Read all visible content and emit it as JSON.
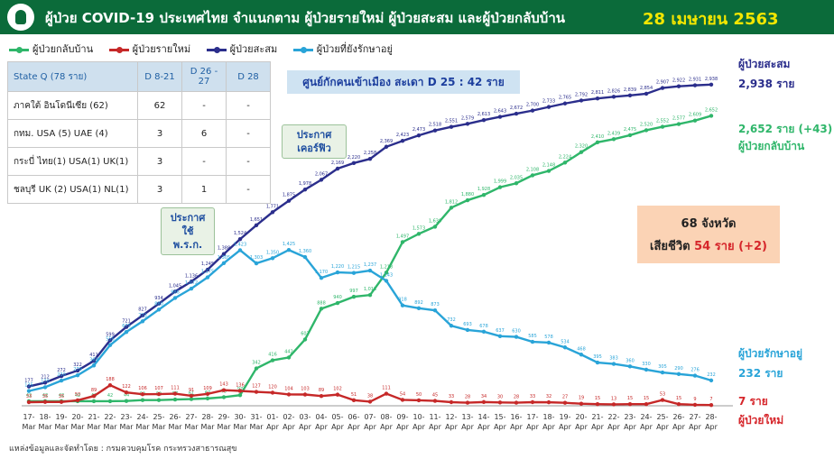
{
  "header": {
    "title": "ผู้ป่วย COVID-19 ประเทศไทย จำแนกตาม ผู้ป่วยรายใหม่ ผู้ป่วยสะสม และผู้ป่วยกลับบ้าน",
    "date": "28 เมษายน 2563"
  },
  "colors": {
    "cumulative": "#2b2e8c",
    "recovered": "#2fb66a",
    "new": "#c62828",
    "treating": "#29a4d8",
    "header_bg": "#0b6b3a"
  },
  "state_q": {
    "headers": [
      "State Q (78 ราย)",
      "D 8-21",
      "D 26 - 27",
      "D 28"
    ],
    "rows": [
      [
        "ภาคใต้ อินโดนีเซีย (62)",
        "62",
        "-",
        "-"
      ],
      [
        "กทม. USA (5) UAE (4)",
        "3",
        "6",
        "-"
      ],
      [
        "กระบี่ ไทย(1) USA(1) UK(1)",
        "3",
        "-",
        "-"
      ],
      [
        "ชลบุรี UK (2) USA(1) NL(1)",
        "3",
        "1",
        "-"
      ]
    ]
  },
  "quarantine_note": "ศูนย์กักคนเข้าเมือง สะเดา D 25 : 42 ราย",
  "callouts": [
    "ประกาศ ใช้ พ.ร.ก.",
    "ประกาศ เคอร์ฟิว"
  ],
  "summary": {
    "provinces": "68 จังหวัด",
    "deaths_label": "เสียชีวิต",
    "deaths_value": "54 ราย (+2)"
  },
  "end_labels": {
    "cumulative_name": "ผู้ป่วยสะสม",
    "cumulative_value": "2,938 ราย",
    "recovered_value": "2,652 ราย (+43)",
    "recovered_name": "ผู้ป่วยกลับบ้าน",
    "treating_name": "ผู้ป่วยรักษาอยู่",
    "treating_value": "232 ราย",
    "new_value": "7 ราย",
    "new_name": "ผู้ป่วยใหม่"
  },
  "source": "แหล่งข้อมูลและจัดทำโดย : กรมควบคุมโรค กระทรวงสาธารณสุข",
  "chart_data": {
    "type": "line",
    "x": [
      "17-Mar",
      "18-Mar",
      "19-Mar",
      "20-Mar",
      "21-Mar",
      "22-Mar",
      "23-Mar",
      "24-Mar",
      "25-Mar",
      "26-Mar",
      "27-Mar",
      "28-Mar",
      "29-Mar",
      "30-Mar",
      "31-Mar",
      "01-Apr",
      "02-Apr",
      "03-Apr",
      "04-Apr",
      "05-Apr",
      "06-Apr",
      "07-Apr",
      "08-Apr",
      "09-Apr",
      "10-Apr",
      "11-Apr",
      "12-Apr",
      "13-Apr",
      "14-Apr",
      "15-Apr",
      "16-Apr",
      "17-Apr",
      "18-Apr",
      "19-Apr",
      "20-Apr",
      "21-Apr",
      "22-Apr",
      "23-Apr",
      "24-Apr",
      "25-Apr",
      "26-Apr",
      "27-Apr",
      "28-Apr"
    ],
    "x_tick_day": [
      "17-",
      "18-",
      "19-",
      "20-",
      "21-",
      "22-",
      "23-",
      "24-",
      "25-",
      "26-",
      "27-",
      "28-",
      "29-",
      "30-",
      "31-",
      "01-",
      "02-",
      "03-",
      "04-",
      "05-",
      "06-",
      "07-",
      "08-",
      "09-",
      "10-",
      "11-",
      "12-",
      "13-",
      "14-",
      "15-",
      "16-",
      "17-",
      "18-",
      "19-",
      "20-",
      "21-",
      "22-",
      "23-",
      "24-",
      "25-",
      "26-",
      "27-",
      "28-"
    ],
    "x_tick_month": [
      "Mar",
      "Mar",
      "Mar",
      "Mar",
      "Mar",
      "Mar",
      "Mar",
      "Mar",
      "Mar",
      "Mar",
      "Mar",
      "Mar",
      "Mar",
      "Mar",
      "Mar",
      "Apr",
      "Apr",
      "Apr",
      "Apr",
      "Apr",
      "Apr",
      "Apr",
      "Apr",
      "Apr",
      "Apr",
      "Apr",
      "Apr",
      "Apr",
      "Apr",
      "Apr",
      "Apr",
      "Apr",
      "Apr",
      "Apr",
      "Apr",
      "Apr",
      "Apr",
      "Apr",
      "Apr",
      "Apr",
      "Apr",
      "Apr",
      "Apr"
    ],
    "ylim": [
      0,
      3200
    ],
    "grid": false,
    "series": [
      {
        "name": "ผู้ป่วยกลับบ้าน",
        "key": "recovered",
        "values": [
          42,
          42,
          42,
          42,
          42,
          42,
          44,
          52,
          52,
          57,
          61,
          67,
          79,
          97,
          342,
          416,
          442,
          607,
          888,
          940,
          997,
          1013,
          1218,
          1497,
          1573,
          1638,
          1812,
          1880,
          1928,
          1999,
          2035,
          2108,
          2148,
          2224,
          2320,
          2410,
          2439,
          2475,
          2520,
          2552,
          2577,
          2609,
          2652
        ]
      },
      {
        "name": "ผู้ป่วยรายใหม่",
        "key": "new",
        "values": [
          33,
          35,
          35,
          50,
          89,
          188,
          122,
          106,
          107,
          111,
          91,
          109,
          143,
          136,
          127,
          120,
          104,
          103,
          89,
          102,
          51,
          38,
          111,
          54,
          50,
          45,
          33,
          28,
          34,
          30,
          28,
          33,
          32,
          27,
          19,
          15,
          13,
          15,
          15,
          53,
          15,
          9,
          7
        ]
      },
      {
        "name": "ผู้ป่วยสะสม",
        "key": "cumulative",
        "values": [
          177,
          212,
          272,
          322,
          411,
          599,
          721,
          827,
          934,
          1045,
          1136,
          1245,
          1388,
          1524,
          1651,
          1771,
          1875,
          1978,
          2067,
          2169,
          2220,
          2258,
          2369,
          2423,
          2473,
          2518,
          2551,
          2579,
          2613,
          2643,
          2672,
          2700,
          2733,
          2765,
          2792,
          2811,
          2826,
          2839,
          2854,
          2907,
          2922,
          2931,
          2938
        ]
      },
      {
        "name": "ผู้ป่วยที่ยังรักษาอยู่",
        "key": "treating",
        "values": [
          135,
          170,
          230,
          279,
          369,
          555,
          675,
          773,
          880,
          986,
          1072,
          1175,
          1305,
          1423,
          1303,
          1350,
          1425,
          1360,
          1170,
          1220,
          1215,
          1237,
          1143,
          918,
          892,
          873,
          732,
          693,
          678,
          637,
          630,
          585,
          578,
          534,
          468,
          395,
          383,
          360,
          330,
          305,
          290,
          276,
          232
        ]
      }
    ],
    "data_labels": {
      "cumulative": [
        "177",
        "212",
        "272",
        "322",
        "411",
        "599",
        "721",
        "827",
        "934",
        "1,045",
        "1,136",
        "1,245",
        "1,388",
        "1,524",
        "1,651",
        "1,771",
        "1,875",
        "1,978",
        "2,067",
        "2,169",
        "2,220",
        "2,258",
        "2,369",
        "2,423",
        "2,473",
        "2,518",
        "2,551",
        "2,579",
        "2,613",
        "2,643",
        "2,672",
        "2,700",
        "2,733",
        "2,765",
        "2,792",
        "2,811",
        "2,826",
        "2,839",
        "2,854",
        "2,907",
        "2,922",
        "2,931",
        "2,938"
      ],
      "new": [
        "33",
        "35",
        "35",
        "50",
        "89",
        "188",
        "122",
        "106",
        "107",
        "111",
        "91",
        "109",
        "143",
        "136",
        "127",
        "120",
        "104",
        "103",
        "89",
        "102",
        "51",
        "38",
        "111",
        "54",
        "50",
        "45",
        "33",
        "28",
        "34",
        "30",
        "28",
        "33",
        "32",
        "27",
        "19",
        "15",
        "13",
        "15",
        "15",
        "53",
        "15",
        "9",
        "7"
      ],
      "treating": [
        "135",
        "170",
        "230",
        "279",
        "369",
        "555",
        "675",
        "773",
        "880",
        "986",
        "1,072",
        "1,175",
        "1,305",
        "1,423",
        "1,303",
        "1,350",
        "1,425",
        "1,360",
        "1,170",
        "1,220",
        "1,215",
        "1,237",
        "1,143",
        "918",
        "892",
        "873",
        "732",
        "693",
        "678",
        "637",
        "630",
        "585",
        "578",
        "534",
        "468",
        "395",
        "383",
        "360",
        "330",
        "305",
        "290",
        "276",
        "232"
      ],
      "recovered": [
        "42",
        "42",
        "42",
        "42",
        "42",
        "42",
        "44",
        "52",
        "52",
        "57",
        "61",
        "67",
        "79",
        "97",
        "342",
        "416",
        "442",
        "607",
        "888",
        "940",
        "997",
        "1,013",
        "1,218",
        "1,497",
        "1,573",
        "1,638",
        "1,812",
        "1,880",
        "1,928",
        "1,999",
        "2,035",
        "2,108",
        "2,148",
        "2,224",
        "2,320",
        "2,410",
        "2,439",
        "2,475",
        "2,520",
        "2,552",
        "2,577",
        "2,609",
        "2,652"
      ]
    }
  }
}
